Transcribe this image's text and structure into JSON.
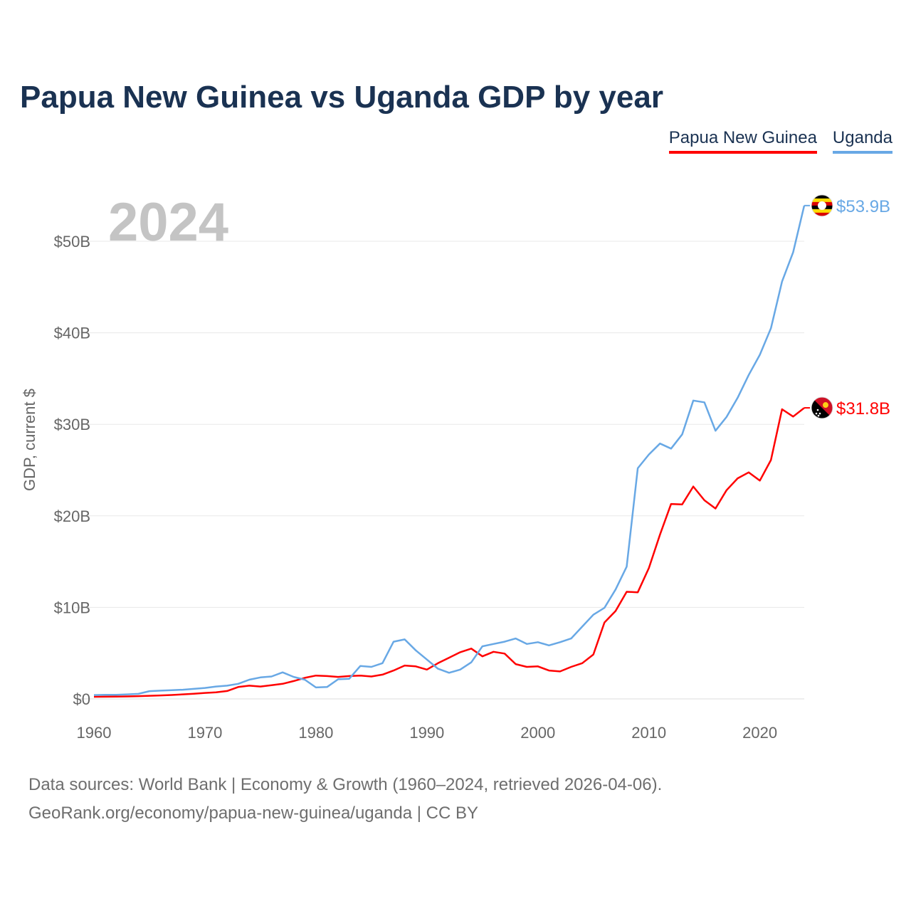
{
  "chart_data": {
    "type": "line",
    "title": "Papua New Guinea vs Uganda GDP by year",
    "current_year": "2024",
    "ylabel": "GDP, current $",
    "xlabel": "",
    "xlim": [
      1960,
      2024
    ],
    "ylim": [
      0,
      55
    ],
    "y_ticks": [
      {
        "value": 0,
        "label": "$0"
      },
      {
        "value": 10,
        "label": "$10B"
      },
      {
        "value": 20,
        "label": "$20B"
      },
      {
        "value": 30,
        "label": "$30B"
      },
      {
        "value": 40,
        "label": "$40B"
      },
      {
        "value": 50,
        "label": "$50B"
      }
    ],
    "x_ticks": [
      {
        "value": 1960,
        "label": "1960"
      },
      {
        "value": 1970,
        "label": "1970"
      },
      {
        "value": 1980,
        "label": "1980"
      },
      {
        "value": 1990,
        "label": "1990"
      },
      {
        "value": 2000,
        "label": "2000"
      },
      {
        "value": 2010,
        "label": "2010"
      },
      {
        "value": 2020,
        "label": "2020"
      }
    ],
    "grid": true,
    "legend_position": "top-right",
    "x": [
      1960,
      1961,
      1962,
      1963,
      1964,
      1965,
      1966,
      1967,
      1968,
      1969,
      1970,
      1971,
      1972,
      1973,
      1974,
      1975,
      1976,
      1977,
      1978,
      1979,
      1980,
      1981,
      1982,
      1983,
      1984,
      1985,
      1986,
      1987,
      1988,
      1989,
      1990,
      1991,
      1992,
      1993,
      1994,
      1995,
      1996,
      1997,
      1998,
      1999,
      2000,
      2001,
      2002,
      2003,
      2004,
      2005,
      2006,
      2007,
      2008,
      2009,
      2010,
      2011,
      2012,
      2013,
      2014,
      2015,
      2016,
      2017,
      2018,
      2019,
      2020,
      2021,
      2022,
      2023,
      2024
    ],
    "series": [
      {
        "name": "Papua New Guinea",
        "color": "#ff0000",
        "end_label": "$31.8B",
        "values": [
          0.23,
          0.24,
          0.25,
          0.27,
          0.3,
          0.34,
          0.38,
          0.43,
          0.5,
          0.57,
          0.65,
          0.72,
          0.86,
          1.3,
          1.45,
          1.35,
          1.5,
          1.65,
          1.95,
          2.3,
          2.55,
          2.5,
          2.4,
          2.5,
          2.55,
          2.45,
          2.65,
          3.1,
          3.65,
          3.55,
          3.2,
          3.9,
          4.5,
          5.1,
          5.5,
          4.65,
          5.15,
          4.95,
          3.8,
          3.5,
          3.55,
          3.1,
          3.0,
          3.5,
          3.9,
          4.85,
          8.35,
          9.6,
          11.7,
          11.65,
          14.3,
          17.95,
          21.3,
          21.25,
          23.2,
          21.7,
          20.8,
          22.8,
          24.1,
          24.75,
          23.85,
          26.1,
          31.65,
          30.85,
          31.8
        ]
      },
      {
        "name": "Uganda",
        "color": "#68a8e5",
        "end_label": "$53.9B",
        "values": [
          0.42,
          0.44,
          0.45,
          0.5,
          0.55,
          0.85,
          0.9,
          0.95,
          1.0,
          1.1,
          1.2,
          1.35,
          1.45,
          1.65,
          2.1,
          2.35,
          2.45,
          2.9,
          2.4,
          2.1,
          1.25,
          1.3,
          2.15,
          2.2,
          3.6,
          3.5,
          3.9,
          6.25,
          6.5,
          5.3,
          4.3,
          3.3,
          2.85,
          3.2,
          4.0,
          5.75,
          6.0,
          6.25,
          6.6,
          6.0,
          6.2,
          5.85,
          6.2,
          6.6,
          7.9,
          9.2,
          9.95,
          11.95,
          14.45,
          25.2,
          26.7,
          27.9,
          27.35,
          28.9,
          32.6,
          32.4,
          29.3,
          30.8,
          32.9,
          35.4,
          37.6,
          40.5,
          45.6,
          48.8,
          53.9
        ]
      }
    ]
  },
  "legend": {
    "items": [
      {
        "label": "Papua New Guinea",
        "color": "#ff0000"
      },
      {
        "label": "Uganda",
        "color": "#68a8e5"
      }
    ]
  },
  "footer": {
    "line1": "Data sources: World Bank | Economy & Growth (1960–2024, retrieved 2026-04-06).",
    "line2": "GeoRank.org/economy/papua-new-guinea/uganda | CC BY"
  }
}
